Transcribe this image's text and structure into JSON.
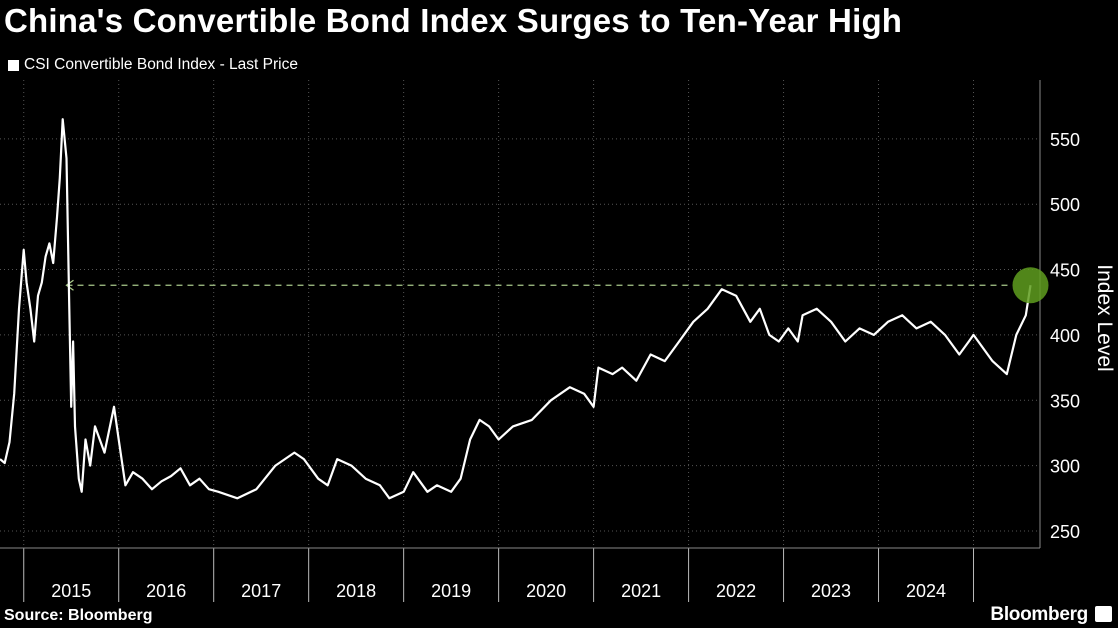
{
  "title": "China's Convertible Bond Index Surges to Ten-Year High",
  "legend": "CSI Convertible Bond Index - Last Price",
  "source": "Source: Bloomberg",
  "brand": "Bloomberg",
  "colors": {
    "background": "#000000",
    "line": "#ffffff",
    "grid": "#555555",
    "highlight": "#5f9e1f",
    "reference": "#a8c88a"
  },
  "chart_data": {
    "type": "line",
    "title": "China's Convertible Bond Index Surges to Ten-Year High",
    "ylabel": "Index Level",
    "xlabel": "",
    "ylim": [
      237,
      595
    ],
    "xlim": [
      2014.0,
      2024.95
    ],
    "yticks": [
      250,
      300,
      350,
      400,
      450,
      500,
      550
    ],
    "xtick_labels": [
      "2015",
      "2016",
      "2017",
      "2018",
      "2019",
      "2020",
      "2021",
      "2022",
      "2023",
      "2024"
    ],
    "year_boundaries": [
      2014.25,
      2015.25,
      2016.25,
      2017.25,
      2018.25,
      2019.25,
      2020.25,
      2021.25,
      2022.25,
      2023.25,
      2024.25
    ],
    "grid": true,
    "y_axis_position": "right",
    "reference_line": {
      "value": 438,
      "from_x": 2014.7,
      "to_x": 2024.85
    },
    "highlight_point": {
      "x": 2024.85,
      "y": 438
    },
    "series": [
      {
        "name": "CSI Convertible Bond Index - Last Price",
        "x": [
          2014.0,
          2014.05,
          2014.1,
          2014.15,
          2014.2,
          2014.25,
          2014.28,
          2014.32,
          2014.36,
          2014.4,
          2014.44,
          2014.48,
          2014.52,
          2014.56,
          2014.6,
          2014.63,
          2014.66,
          2014.7,
          2014.73,
          2014.75,
          2014.77,
          2014.79,
          2014.81,
          2014.83,
          2014.86,
          2014.9,
          2014.95,
          2015.0,
          2015.1,
          2015.2,
          2015.25,
          2015.32,
          2015.4,
          2015.5,
          2015.6,
          2015.7,
          2015.8,
          2015.9,
          2016.0,
          2016.1,
          2016.2,
          2016.3,
          2016.5,
          2016.7,
          2016.9,
          2017.1,
          2017.2,
          2017.35,
          2017.45,
          2017.55,
          2017.7,
          2017.85,
          2018.0,
          2018.1,
          2018.25,
          2018.35,
          2018.5,
          2018.6,
          2018.75,
          2018.85,
          2018.95,
          2019.05,
          2019.15,
          2019.25,
          2019.4,
          2019.6,
          2019.8,
          2020.0,
          2020.15,
          2020.25,
          2020.3,
          2020.45,
          2020.55,
          2020.7,
          2020.85,
          2021.0,
          2021.15,
          2021.3,
          2021.45,
          2021.6,
          2021.75,
          2021.9,
          2022.0,
          2022.1,
          2022.2,
          2022.3,
          2022.4,
          2022.45,
          2022.6,
          2022.75,
          2022.9,
          2023.05,
          2023.2,
          2023.35,
          2023.5,
          2023.65,
          2023.8,
          2023.95,
          2024.1,
          2024.2,
          2024.25,
          2024.3,
          2024.45,
          2024.6,
          2024.7,
          2024.8,
          2024.85
        ],
        "values": [
          305,
          302,
          318,
          355,
          420,
          465,
          440,
          420,
          395,
          430,
          440,
          460,
          470,
          455,
          490,
          520,
          565,
          535,
          420,
          345,
          395,
          330,
          310,
          290,
          280,
          320,
          300,
          330,
          310,
          345,
          320,
          285,
          295,
          290,
          282,
          288,
          292,
          298,
          285,
          290,
          282,
          280,
          275,
          282,
          300,
          310,
          305,
          290,
          285,
          305,
          300,
          290,
          285,
          275,
          280,
          295,
          280,
          285,
          280,
          290,
          320,
          335,
          330,
          320,
          330,
          335,
          350,
          360,
          355,
          345,
          375,
          370,
          375,
          365,
          385,
          380,
          395,
          410,
          420,
          435,
          430,
          410,
          420,
          400,
          395,
          405,
          395,
          415,
          420,
          410,
          395,
          405,
          400,
          410,
          415,
          405,
          410,
          400,
          385,
          395,
          400,
          395,
          380,
          370,
          400,
          415,
          438
        ]
      }
    ]
  }
}
